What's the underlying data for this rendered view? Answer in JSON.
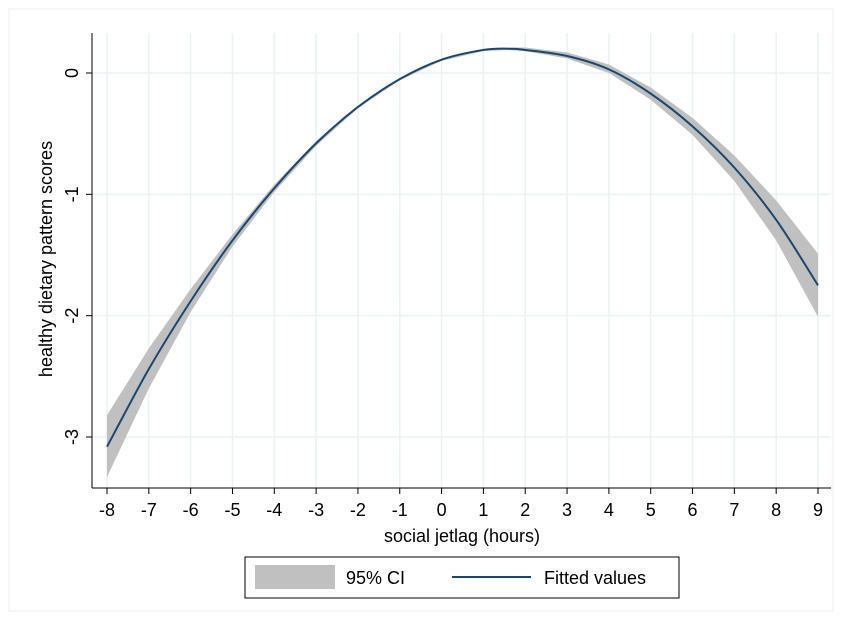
{
  "chart_data": {
    "type": "line",
    "xlabel": "social jetlag (hours)",
    "ylabel": "healthy dietary pattern scores",
    "xlim": [
      -8,
      9
    ],
    "ylim": [
      -3.4,
      0.35
    ],
    "xticks": [
      -8,
      -7,
      -6,
      -5,
      -4,
      -3,
      -2,
      -1,
      0,
      1,
      2,
      3,
      4,
      5,
      6,
      7,
      8,
      9
    ],
    "yticks": [
      0,
      -1,
      -2,
      -3
    ],
    "grid": true,
    "legend_position": "bottom",
    "colors": {
      "fit": "#1a476f",
      "ci": "#c0c0c0",
      "grid": "#eaf2f3",
      "frame": "#e6e6e6"
    },
    "series": [
      {
        "name": "Fitted values",
        "style": "line",
        "x": [
          -8,
          -7,
          -6,
          -5,
          -4,
          -3,
          -2,
          -1,
          0,
          1,
          1.6,
          2,
          3,
          4,
          5,
          6,
          7,
          8,
          9
        ],
        "y": [
          -3.08,
          -2.44,
          -1.88,
          -1.38,
          -0.95,
          -0.58,
          -0.28,
          -0.05,
          0.11,
          0.19,
          0.2,
          0.19,
          0.14,
          0.03,
          -0.17,
          -0.44,
          -0.78,
          -1.21,
          -1.75
        ]
      },
      {
        "name": "95% CI",
        "style": "band",
        "x": [
          -8,
          -7,
          -6,
          -5,
          -4,
          -3,
          -2,
          -1,
          0,
          1,
          1.6,
          2,
          3,
          4,
          5,
          6,
          7,
          8,
          9
        ],
        "lower": [
          -3.33,
          -2.6,
          -1.97,
          -1.43,
          -0.98,
          -0.6,
          -0.29,
          -0.06,
          0.1,
          0.18,
          0.19,
          0.18,
          0.12,
          0.0,
          -0.22,
          -0.51,
          -0.89,
          -1.38,
          -2.01
        ],
        "upper": [
          -2.82,
          -2.27,
          -1.78,
          -1.33,
          -0.92,
          -0.56,
          -0.27,
          -0.04,
          0.12,
          0.2,
          0.21,
          0.21,
          0.17,
          0.07,
          -0.12,
          -0.37,
          -0.68,
          -1.05,
          -1.49
        ]
      }
    ],
    "legend": {
      "ci_label": "95% CI",
      "fit_label": "Fitted values"
    }
  }
}
